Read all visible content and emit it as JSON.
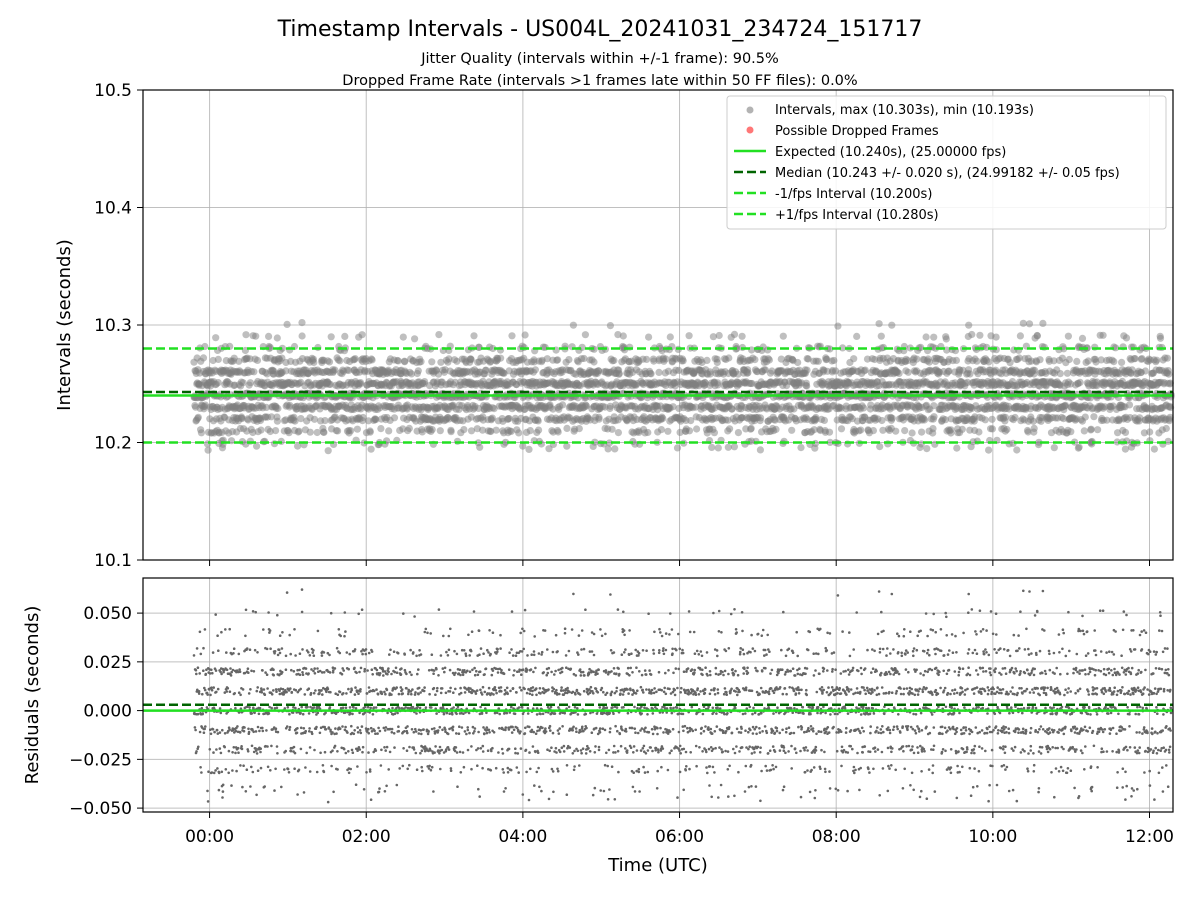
{
  "figure": {
    "title": "Timestamp Intervals - US004L_20241031_234724_151717",
    "subtitle_1": "Jitter Quality (intervals within +/-1 frame): 90.5%",
    "subtitle_2": "Dropped Frame Rate (intervals >1 frames late within 50 FF files): 0.0%"
  },
  "chart_data": [
    {
      "type": "scatter",
      "panel": "intervals",
      "ylabel": "Intervals (seconds)",
      "ylim": [
        10.1,
        10.5
      ],
      "yticks": [
        10.1,
        10.2,
        10.3,
        10.4,
        10.5
      ],
      "ytick_labels": [
        "10.1",
        "10.2",
        "10.3",
        "10.4",
        "10.5"
      ],
      "xlim_hours": [
        -0.85,
        12.3
      ],
      "grid": true,
      "legend_position": "top-right",
      "point_summary": {
        "count_approx": 4200,
        "time_start_hours": -0.2,
        "time_end_hours": 12.28,
        "max": 10.303,
        "min": 10.193,
        "center": 10.243,
        "spread": 0.02,
        "quantization_step": 0.01
      },
      "reference_lines": [
        {
          "name": "Expected (10.240s), (25.00000 fps)",
          "y": 10.24,
          "style": "solid",
          "color": "#22e022"
        },
        {
          "name": "Median (10.243 +/- 0.020 s), (24.99182 +/- 0.05 fps)",
          "y": 10.243,
          "style": "dashed",
          "color": "#006400"
        },
        {
          "name": "-1/fps Interval (10.200s)",
          "y": 10.2,
          "style": "dashed",
          "color": "#22e022"
        },
        {
          "name": "+1/fps Interval (10.280s)",
          "y": 10.28,
          "style": "dashed",
          "color": "#22e022"
        }
      ],
      "series": [
        {
          "name": "Intervals, max (10.303s), min (10.193s)",
          "color": "#808080"
        },
        {
          "name": "Possible Dropped Frames",
          "color": "#ff5555"
        }
      ]
    },
    {
      "type": "scatter",
      "panel": "residuals",
      "ylabel": "Residuals (seconds)",
      "xlabel": "Time (UTC)",
      "ylim": [
        -0.052,
        0.068
      ],
      "yticks": [
        -0.05,
        -0.025,
        0.0,
        0.025,
        0.05
      ],
      "ytick_labels": [
        "−0.050",
        "−0.025",
        "0.000",
        "0.025",
        "0.050"
      ],
      "xlim_hours": [
        -0.85,
        12.3
      ],
      "xticks_hours": [
        0,
        2,
        4,
        6,
        8,
        10,
        12
      ],
      "xtick_labels": [
        "00:00",
        "02:00",
        "04:00",
        "06:00",
        "08:00",
        "10:00",
        "12:00"
      ],
      "grid": true,
      "reference_lines": [
        {
          "y": 0.0,
          "style": "solid",
          "color": "#22e022"
        },
        {
          "y": 0.003,
          "style": "dashed",
          "color": "#006400"
        }
      ],
      "point_color": "#666666"
    }
  ]
}
